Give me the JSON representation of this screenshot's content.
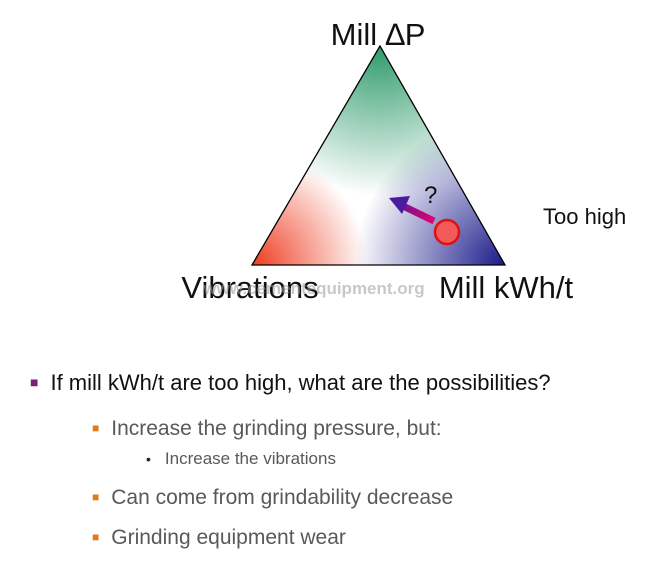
{
  "diagram": {
    "top_label": "Mill ∆P",
    "left_label": "Vibrations",
    "right_label": "Mill kWh/t",
    "side_note": "Too high",
    "question_mark": "?",
    "watermark": "www.cementequipment.org",
    "colors": {
      "top_vertex": "#2e9a6a",
      "left_vertex": "#ee3b1f",
      "right_vertex": "#1a1a8a",
      "marker_fill": "#f25a5a",
      "marker_stroke": "#e01010",
      "arrow_start": "#e8006a",
      "arrow_end": "#4a1aa0"
    }
  },
  "bullets": [
    {
      "text": "If mill kWh/t are too high, what are the possibilities?",
      "level": 1
    },
    {
      "text": "Increase the grinding pressure, but:",
      "level": 2
    },
    {
      "text": "Increase the vibrations",
      "level": 3
    },
    {
      "text": "Can come from grindability decrease",
      "level": 2
    },
    {
      "text": "Grinding equipment wear",
      "level": 2
    }
  ]
}
